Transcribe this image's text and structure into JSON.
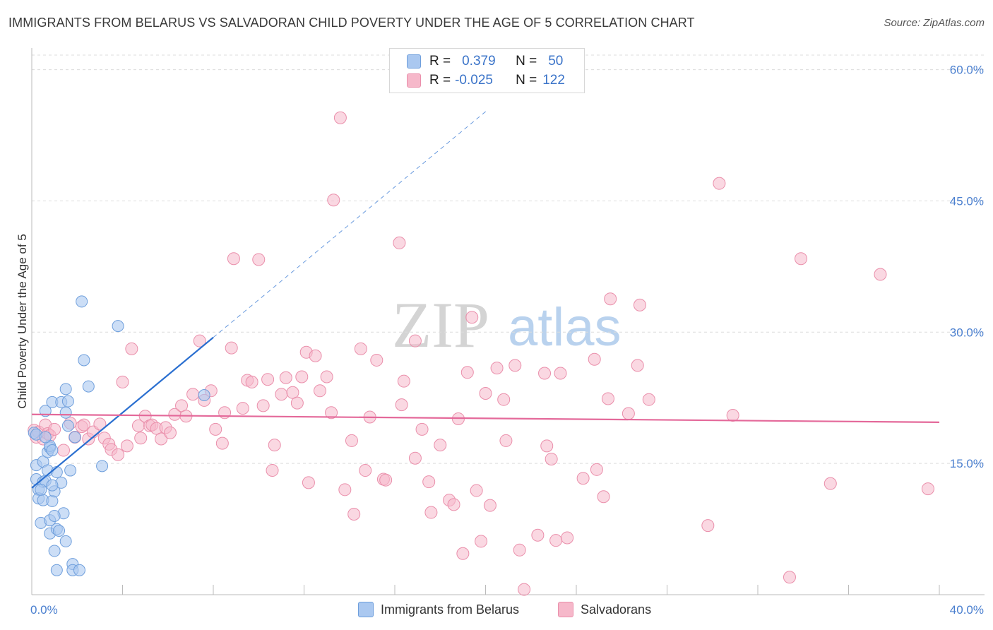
{
  "header": {
    "title": "IMMIGRANTS FROM BELARUS VS SALVADORAN CHILD POVERTY UNDER THE AGE OF 5 CORRELATION CHART",
    "source": "Source: ZipAtlas.com"
  },
  "watermark": {
    "zip": "ZIP",
    "atlas": "atlas"
  },
  "stats": {
    "belarus": {
      "r_label": "R =",
      "r_value": "0.379",
      "n_label": "N =",
      "n_value": "50"
    },
    "salvadoran": {
      "r_label": "R =",
      "r_value": "-0.025",
      "n_label": "N =",
      "n_value": "122"
    }
  },
  "legend": {
    "belarus": "Immigrants from Belarus",
    "salvadoran": "Salvadorans"
  },
  "colors": {
    "belarus_fill": "#aac8f0",
    "belarus_stroke": "#6f9fdc",
    "belarus_line": "#2a6fd0",
    "salvadoran_fill": "#f6b8ca",
    "salvadoran_stroke": "#ea8fab",
    "salvadoran_line": "#e4699a",
    "grid": "#dcdcdc",
    "tick_text": "#4a7fcf"
  },
  "chart_data": {
    "type": "scatter",
    "title": "IMMIGRANTS FROM BELARUS VS SALVADORAN CHILD POVERTY UNDER THE AGE OF 5 CORRELATION CHART",
    "xlabel": "",
    "ylabel": "Child Poverty Under the Age of 5",
    "xlim": [
      0,
      40
    ],
    "ylim": [
      0,
      61.5
    ],
    "x_tick_labels": [
      "0.0%",
      "40.0%"
    ],
    "y_ticks": [
      15,
      30,
      45,
      60
    ],
    "y_tick_labels": [
      "15.0%",
      "30.0%",
      "45.0%",
      "60.0%"
    ],
    "grid": true,
    "legend_position": "bottom",
    "series": [
      {
        "name": "Immigrants from Belarus",
        "points": [
          [
            0.1,
            18.5
          ],
          [
            0.2,
            14.8
          ],
          [
            0.2,
            13.2
          ],
          [
            0.3,
            12.0
          ],
          [
            0.3,
            11.0
          ],
          [
            0.4,
            8.2
          ],
          [
            0.5,
            15.2
          ],
          [
            0.5,
            12.9
          ],
          [
            0.5,
            10.8
          ],
          [
            0.6,
            21.0
          ],
          [
            0.6,
            13.0
          ],
          [
            0.7,
            14.2
          ],
          [
            0.7,
            16.3
          ],
          [
            0.8,
            16.8
          ],
          [
            0.8,
            17.0
          ],
          [
            0.8,
            8.5
          ],
          [
            0.8,
            7.0
          ],
          [
            0.9,
            22.0
          ],
          [
            0.9,
            16.5
          ],
          [
            0.9,
            10.7
          ],
          [
            1.0,
            5.0
          ],
          [
            1.0,
            11.8
          ],
          [
            1.1,
            2.8
          ],
          [
            1.1,
            14.0
          ],
          [
            1.1,
            7.5
          ],
          [
            1.2,
            7.3
          ],
          [
            1.3,
            22.0
          ],
          [
            1.3,
            12.8
          ],
          [
            1.4,
            9.3
          ],
          [
            1.5,
            23.5
          ],
          [
            1.5,
            20.8
          ],
          [
            1.5,
            6.1
          ],
          [
            1.6,
            22.1
          ],
          [
            1.6,
            19.3
          ],
          [
            1.7,
            14.2
          ],
          [
            1.8,
            3.5
          ],
          [
            1.8,
            2.8
          ],
          [
            1.9,
            18.0
          ],
          [
            2.1,
            2.8
          ],
          [
            2.2,
            33.5
          ],
          [
            2.3,
            26.8
          ],
          [
            2.5,
            23.8
          ],
          [
            3.1,
            14.7
          ],
          [
            3.8,
            30.7
          ],
          [
            7.6,
            22.8
          ],
          [
            0.2,
            18.3
          ],
          [
            0.6,
            18.0
          ],
          [
            0.9,
            12.5
          ],
          [
            0.4,
            12.0
          ],
          [
            1.0,
            9.0
          ]
        ]
      },
      {
        "name": "Salvadorans",
        "points": [
          [
            0.1,
            18.8
          ],
          [
            0.2,
            18.0
          ],
          [
            0.3,
            18.6
          ],
          [
            0.5,
            17.8
          ],
          [
            0.6,
            19.4
          ],
          [
            0.7,
            18.4
          ],
          [
            0.8,
            18.2
          ],
          [
            1.0,
            18.9
          ],
          [
            1.4,
            16.5
          ],
          [
            1.7,
            19.6
          ],
          [
            1.9,
            18.0
          ],
          [
            2.2,
            19.2
          ],
          [
            2.3,
            19.4
          ],
          [
            2.5,
            17.8
          ],
          [
            2.7,
            18.6
          ],
          [
            3.0,
            19.5
          ],
          [
            3.2,
            17.9
          ],
          [
            3.4,
            17.2
          ],
          [
            3.5,
            16.6
          ],
          [
            3.8,
            16.0
          ],
          [
            4.0,
            24.3
          ],
          [
            4.2,
            17.0
          ],
          [
            4.4,
            28.1
          ],
          [
            4.7,
            19.3
          ],
          [
            4.8,
            17.9
          ],
          [
            5.0,
            20.4
          ],
          [
            5.2,
            19.3
          ],
          [
            5.3,
            19.4
          ],
          [
            5.5,
            19.0
          ],
          [
            5.7,
            17.8
          ],
          [
            5.9,
            19.1
          ],
          [
            6.1,
            18.5
          ],
          [
            6.3,
            20.6
          ],
          [
            6.6,
            21.6
          ],
          [
            6.8,
            20.4
          ],
          [
            7.1,
            22.9
          ],
          [
            7.4,
            29.0
          ],
          [
            7.6,
            22.2
          ],
          [
            7.9,
            23.3
          ],
          [
            8.1,
            18.9
          ],
          [
            8.4,
            17.3
          ],
          [
            8.5,
            20.8
          ],
          [
            8.8,
            28.2
          ],
          [
            8.9,
            38.4
          ],
          [
            9.3,
            21.3
          ],
          [
            9.5,
            24.5
          ],
          [
            9.7,
            24.3
          ],
          [
            10.0,
            38.3
          ],
          [
            10.2,
            21.6
          ],
          [
            10.4,
            24.6
          ],
          [
            10.6,
            14.2
          ],
          [
            10.7,
            17.1
          ],
          [
            11.0,
            22.9
          ],
          [
            11.2,
            24.8
          ],
          [
            11.5,
            23.1
          ],
          [
            11.7,
            21.9
          ],
          [
            11.9,
            24.9
          ],
          [
            12.1,
            27.7
          ],
          [
            12.2,
            12.8
          ],
          [
            12.5,
            27.3
          ],
          [
            12.7,
            23.3
          ],
          [
            13.0,
            24.9
          ],
          [
            13.2,
            20.8
          ],
          [
            13.3,
            45.1
          ],
          [
            13.6,
            54.5
          ],
          [
            13.8,
            12.0
          ],
          [
            14.1,
            17.6
          ],
          [
            14.2,
            9.2
          ],
          [
            14.5,
            28.1
          ],
          [
            14.7,
            14.2
          ],
          [
            14.9,
            20.3
          ],
          [
            15.2,
            26.8
          ],
          [
            15.5,
            13.2
          ],
          [
            15.6,
            13.1
          ],
          [
            16.2,
            40.2
          ],
          [
            16.3,
            21.7
          ],
          [
            16.4,
            24.4
          ],
          [
            16.9,
            29.0
          ],
          [
            16.9,
            15.6
          ],
          [
            17.2,
            18.9
          ],
          [
            17.5,
            12.9
          ],
          [
            17.6,
            9.4
          ],
          [
            18.0,
            17.1
          ],
          [
            18.4,
            10.8
          ],
          [
            18.6,
            10.3
          ],
          [
            18.8,
            20.1
          ],
          [
            19.0,
            4.7
          ],
          [
            19.2,
            25.4
          ],
          [
            19.4,
            31.7
          ],
          [
            19.6,
            11.9
          ],
          [
            19.8,
            6.1
          ],
          [
            20.0,
            23.0
          ],
          [
            20.2,
            10.2
          ],
          [
            20.5,
            25.9
          ],
          [
            20.8,
            22.3
          ],
          [
            20.9,
            17.6
          ],
          [
            21.3,
            26.2
          ],
          [
            21.5,
            5.1
          ],
          [
            21.7,
            0.6
          ],
          [
            22.3,
            6.8
          ],
          [
            22.6,
            25.3
          ],
          [
            22.7,
            17.0
          ],
          [
            22.9,
            15.5
          ],
          [
            23.1,
            6.2
          ],
          [
            23.3,
            25.3
          ],
          [
            23.6,
            6.5
          ],
          [
            24.3,
            13.3
          ],
          [
            24.8,
            26.9
          ],
          [
            24.9,
            14.3
          ],
          [
            25.2,
            11.2
          ],
          [
            25.4,
            22.4
          ],
          [
            25.5,
            33.8
          ],
          [
            26.3,
            20.7
          ],
          [
            26.7,
            26.2
          ],
          [
            26.8,
            33.1
          ],
          [
            27.2,
            22.3
          ],
          [
            29.8,
            7.9
          ],
          [
            30.3,
            47.0
          ],
          [
            30.9,
            20.5
          ],
          [
            33.4,
            2.0
          ],
          [
            33.9,
            38.4
          ],
          [
            35.2,
            12.7
          ],
          [
            37.4,
            36.6
          ],
          [
            39.5,
            12.1
          ]
        ]
      }
    ],
    "trend_lines": [
      {
        "name": "Immigrants from Belarus",
        "x0": 0.0,
        "y0": 12.2,
        "x1": 8.0,
        "y1": 29.4,
        "dashed_to_x": 20.1
      },
      {
        "name": "Salvadorans",
        "x0": 0.0,
        "y0": 20.6,
        "x1": 40.0,
        "y1": 19.7
      }
    ]
  }
}
